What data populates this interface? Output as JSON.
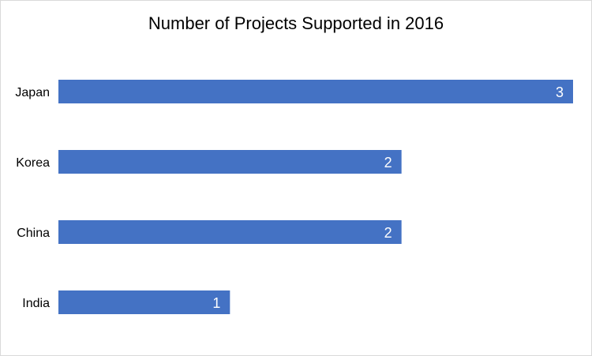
{
  "chart_data": {
    "type": "bar",
    "orientation": "horizontal",
    "title": "Number of Projects Supported in 2016",
    "categories": [
      "Japan",
      "Korea",
      "China",
      "India"
    ],
    "values": [
      3,
      2,
      2,
      1
    ],
    "xlim": [
      0,
      3
    ],
    "xlabel": "",
    "ylabel": "",
    "grid": false,
    "legend": "none",
    "data_labels": true,
    "bar_color": "#4472C4",
    "label_color": "#FFFFFF"
  }
}
